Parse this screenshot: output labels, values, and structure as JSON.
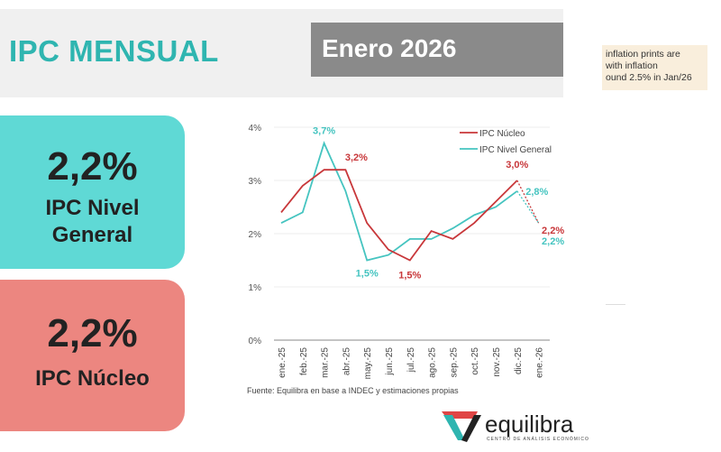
{
  "header": {
    "title": "IPC MENSUAL",
    "month": "Enero 2026"
  },
  "note": {
    "text": "inflation prints are\nwith inflation\nound 2.5% in Jan/26"
  },
  "cards": [
    {
      "value": "2,2%",
      "label1": "IPC Nivel",
      "label2": "General"
    },
    {
      "value": "2,2%",
      "label1": "IPC Núcleo"
    }
  ],
  "source": "Fuente: Equilibra en base a INDEC y estimaciones propias",
  "logo": {
    "name": "equilibra",
    "subtitle": "CENTRO DE ANÁLISIS ECONÓMICO"
  },
  "colors": {
    "nucleo": "#c8373a",
    "general": "#45c4c0"
  },
  "chart_data": {
    "type": "line",
    "categories": [
      "ene.-25",
      "feb.-25",
      "mar.-25",
      "abr.-25",
      "may.-25",
      "jun.-25",
      "jul.-25",
      "ago.-25",
      "sep.-25",
      "oct.-25",
      "nov.-25",
      "dic.-25",
      "ene.-26"
    ],
    "yticks": [
      "0%",
      "1%",
      "2%",
      "3%",
      "4%"
    ],
    "ylim": [
      0,
      4
    ],
    "legend_position": "top-right",
    "series": [
      {
        "name": "IPC Núcleo",
        "values": [
          2.4,
          2.9,
          3.2,
          3.2,
          2.2,
          1.7,
          1.5,
          2.05,
          1.9,
          2.2,
          2.6,
          3.0,
          2.2
        ],
        "labels": [
          {
            "i": 3,
            "text": "3,2%"
          },
          {
            "i": 6,
            "text": "1,5%"
          },
          {
            "i": 11,
            "text": "3,0%"
          },
          {
            "i": 12,
            "text": "2,2%"
          }
        ]
      },
      {
        "name": "IPC Nivel General",
        "values": [
          2.2,
          2.4,
          3.7,
          2.8,
          1.5,
          1.6,
          1.9,
          1.9,
          2.1,
          2.35,
          2.5,
          2.8,
          2.2
        ],
        "labels": [
          {
            "i": 2,
            "text": "3,7%"
          },
          {
            "i": 4,
            "text": "1,5%"
          },
          {
            "i": 11,
            "text": "2,8%"
          },
          {
            "i": 12,
            "text": "2,2%"
          }
        ]
      }
    ]
  }
}
